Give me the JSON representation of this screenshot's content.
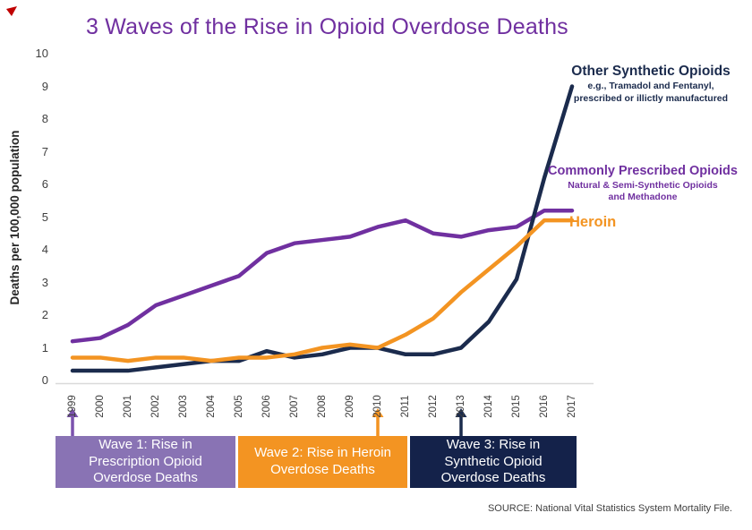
{
  "title": {
    "text": "3 Waves of the Rise in Opioid Overdose Deaths",
    "color": "#7030A0"
  },
  "decorations": {
    "red_mark_color": "#C00000"
  },
  "y_axis": {
    "label": "Deaths per 100,000 population",
    "ticks": [
      0,
      1,
      2,
      3,
      4,
      5,
      6,
      7,
      8,
      9,
      10
    ]
  },
  "x_axis": {
    "years": [
      1999,
      2000,
      2001,
      2002,
      2003,
      2004,
      2005,
      2006,
      2007,
      2008,
      2009,
      2010,
      2011,
      2012,
      2013,
      2014,
      2015,
      2016,
      2017
    ]
  },
  "chart_data": {
    "type": "line",
    "title": "3 Waves of the Rise in Opioid Overdose Deaths",
    "xlabel": "",
    "ylabel": "Deaths per 100,000 population",
    "ylim": [
      0,
      10
    ],
    "grid": false,
    "legend_position": "inline-right",
    "x": [
      1999,
      2000,
      2001,
      2002,
      2003,
      2004,
      2005,
      2006,
      2007,
      2008,
      2009,
      2010,
      2011,
      2012,
      2013,
      2014,
      2015,
      2016,
      2017
    ],
    "series": [
      {
        "name": "Commonly Prescribed Opioids",
        "color": "#7030A0",
        "values": [
          1.2,
          1.3,
          1.7,
          2.3,
          2.6,
          2.9,
          3.2,
          3.9,
          4.2,
          4.3,
          4.4,
          4.7,
          4.9,
          4.5,
          4.4,
          4.6,
          4.7,
          5.2,
          5.2
        ]
      },
      {
        "name": "Other Synthetic Opioids",
        "color": "#1B2B4D",
        "values": [
          0.3,
          0.3,
          0.3,
          0.4,
          0.5,
          0.6,
          0.6,
          0.9,
          0.7,
          0.8,
          1.0,
          1.0,
          0.8,
          0.8,
          1.0,
          1.8,
          3.1,
          6.2,
          9.0
        ]
      },
      {
        "name": "Heroin",
        "color": "#F39422",
        "values": [
          0.7,
          0.7,
          0.6,
          0.7,
          0.7,
          0.6,
          0.7,
          0.7,
          0.8,
          1.0,
          1.1,
          1.0,
          1.4,
          1.9,
          2.7,
          3.4,
          4.1,
          4.9,
          4.9
        ]
      }
    ]
  },
  "annotations": {
    "synthetic": {
      "title": "Other Synthetic Opioids",
      "sub1": "e.g., Tramadol and Fentanyl,",
      "sub2": "prescribed or illictly manufactured",
      "color": "#1B2B4D"
    },
    "prescribed": {
      "title": "Commonly Prescribed Opioids",
      "sub1": "Natural & Semi-Synthetic Opioids",
      "sub2": "and Methadone",
      "color": "#7030A0"
    },
    "heroin": {
      "title": "Heroin",
      "color": "#F39422"
    }
  },
  "waves": [
    {
      "line1": "Wave 1: Rise in",
      "line2": "Prescription Opioid",
      "line3": "Overdose Deaths",
      "color": "#8973B4",
      "arrow_year": 1999,
      "arrow_color": "#7B52AE"
    },
    {
      "line1": "Wave 2: Rise in Heroin",
      "line2": "Overdose Deaths",
      "line3": "",
      "color": "#F39422",
      "arrow_year": 2010,
      "arrow_color": "#F39422"
    },
    {
      "line1": "Wave 3: Rise in",
      "line2": "Synthetic Opioid",
      "line3": "Overdose Deaths",
      "color": "#14224A",
      "arrow_year": 2013,
      "arrow_color": "#1B2B4D"
    }
  ],
  "source": {
    "text": "SOURCE: National Vital Statistics System Mortality File."
  }
}
